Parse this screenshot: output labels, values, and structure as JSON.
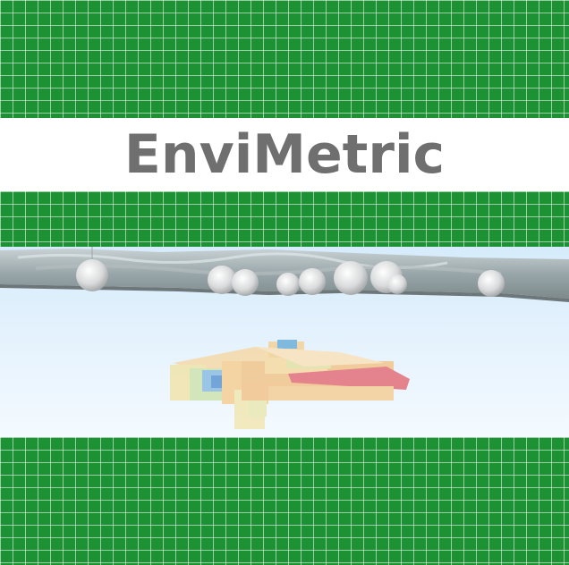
{
  "logo": {
    "wordmark": "EnviMetric"
  },
  "colors": {
    "grid_green": "#1d9235",
    "grid_line": "#8fd39b",
    "title_gray": "#6f6f6f",
    "sky_light": "#e8f4fd",
    "plume_orange": "#f2b47a",
    "plume_red": "#e46f78",
    "plume_blue": "#6fa6d6",
    "plume_yellow": "#e9e29a"
  },
  "scene": {
    "description_icon": "groundwater-plume-3d-model",
    "sample_wells": 10
  }
}
